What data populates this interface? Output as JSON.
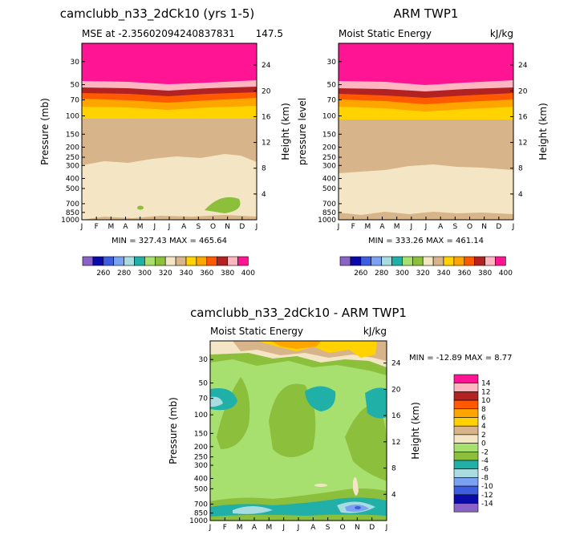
{
  "chart_data": [
    {
      "type": "heatmap",
      "title": "camclubb_n33_2dCk10 (yrs 1-5)",
      "subtitle_left": "MSE at -2.35602094240837831",
      "subtitle_right": "147.5",
      "ylabel": "Pressure (mb)",
      "ylabel_right": "Height (km)",
      "minmax": "MIN = 327.43 MAX = 465.64",
      "colorbar_labels": [
        "260",
        "280",
        "300",
        "320",
        "340",
        "360",
        "380",
        "400"
      ]
    },
    {
      "type": "heatmap",
      "title": "ARM TWP1",
      "subtitle_left": "Moist Static Energy",
      "subtitle_right": "kJ/kg",
      "ylabel": "pressure level",
      "ylabel_right": "Height (km)",
      "minmax": "MIN = 333.26 MAX = 461.14",
      "colorbar_labels": [
        "260",
        "280",
        "300",
        "320",
        "340",
        "360",
        "380",
        "400"
      ]
    },
    {
      "type": "heatmap",
      "title": "camclubb_n33_2dCk10 - ARM TWP1",
      "subtitle_left": "Moist Static Energy",
      "subtitle_right": "kJ/kg",
      "ylabel": "Pressure (mb)",
      "ylabel_right": "Height (km)",
      "minmax": "MIN = -12.89 MAX =   8.77",
      "colorbar_labels": [
        "14",
        "12",
        "10",
        "8",
        "6",
        "4",
        "2",
        "0",
        "-2",
        "-4",
        "-6",
        "-8",
        "-10",
        "-12",
        "-14"
      ]
    }
  ],
  "axes": {
    "months": [
      "J",
      "F",
      "M",
      "A",
      "M",
      "J",
      "J",
      "A",
      "S",
      "O",
      "N",
      "D",
      "J"
    ],
    "pressure_ticks": [
      "30",
      "50",
      "70",
      "100",
      "150",
      "200",
      "250",
      "300",
      "400",
      "500",
      "700",
      "850",
      "1000"
    ],
    "pressure_ticks_short": [
      "30",
      "50",
      "70",
      "100",
      "150",
      "200",
      "250",
      "300",
      "400",
      "500",
      "700",
      "850",
      "1000"
    ],
    "height_ticks": [
      "24",
      "20",
      "16",
      "12",
      "8",
      "4"
    ]
  },
  "colors": {
    "mse_scale": [
      "#8a63c9",
      "#0a0aa8",
      "#3e5ee0",
      "#7aa2f0",
      "#a8dce0",
      "#20b0a8",
      "#a8e070",
      "#8cbf3c",
      "#f4e6c4",
      "#d8b48a",
      "#ffd200",
      "#ffa500",
      "#ff5a00",
      "#b22222",
      "#ffb6c1",
      "#ff1493"
    ],
    "diff_scale": [
      "#ff1493",
      "#ffb6c1",
      "#b22222",
      "#ff5a00",
      "#ffa500",
      "#ffd200",
      "#d8b48a",
      "#f4e6c4",
      "#a8e070",
      "#8cbf3c",
      "#20b0a8",
      "#a8dce0",
      "#7aa2f0",
      "#3e5ee0",
      "#0a0aa8",
      "#8a63c9"
    ]
  }
}
